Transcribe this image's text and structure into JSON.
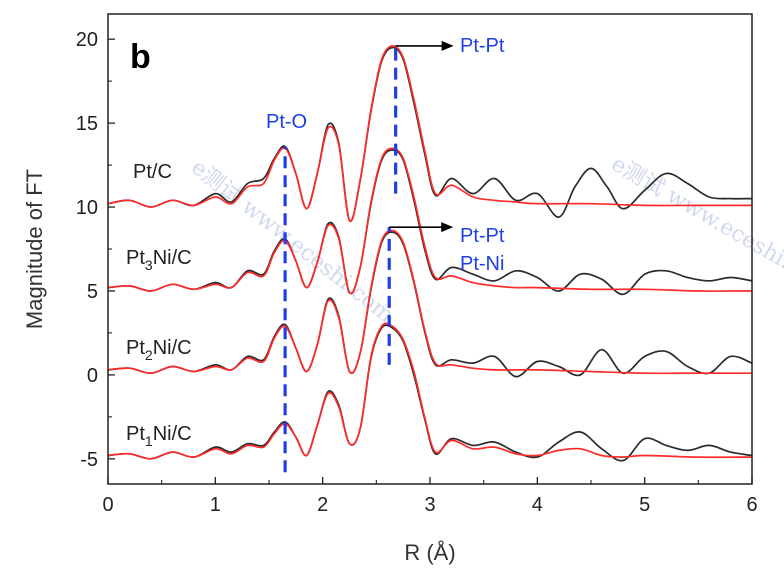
{
  "chart_data": {
    "type": "line",
    "panel_label": "b",
    "xlabel": "R (Å)",
    "ylabel": "Magnitude of FT",
    "xlim": [
      0,
      6
    ],
    "ylim": [
      -6.5,
      21.5
    ],
    "x_ticks": [
      0,
      1,
      2,
      3,
      4,
      5,
      6
    ],
    "x_tick_labels": [
      "0",
      "1",
      "2",
      "3",
      "4",
      "5",
      "6"
    ],
    "y_ticks": [
      -5,
      0,
      5,
      10,
      15,
      20
    ],
    "y_tick_labels": [
      "-5",
      "0",
      "5",
      "10",
      "15",
      "20"
    ],
    "grid": false,
    "series_colors": {
      "experiment": "#2b2b2b",
      "fit": "#ff2b2b"
    },
    "samples": [
      {
        "label_main": "Pt/C",
        "label_sub": "",
        "offset": 10.2,
        "experiment": [
          [
            0,
            0
          ],
          [
            0.2,
            0.2
          ],
          [
            0.4,
            -0.2
          ],
          [
            0.6,
            0.2
          ],
          [
            0.8,
            -0.1
          ],
          [
            1.0,
            0.6
          ],
          [
            1.15,
            0.1
          ],
          [
            1.3,
            1.2
          ],
          [
            1.45,
            1.5
          ],
          [
            1.55,
            2.7
          ],
          [
            1.65,
            3.4
          ],
          [
            1.75,
            1.8
          ],
          [
            1.85,
            -0.3
          ],
          [
            1.95,
            1.8
          ],
          [
            2.05,
            4.7
          ],
          [
            2.15,
            3.6
          ],
          [
            2.25,
            -1.0
          ],
          [
            2.35,
            1.4
          ],
          [
            2.45,
            5.5
          ],
          [
            2.55,
            8.5
          ],
          [
            2.65,
            9.3
          ],
          [
            2.75,
            8.6
          ],
          [
            2.85,
            6.0
          ],
          [
            2.95,
            3.0
          ],
          [
            3.05,
            0.5
          ],
          [
            3.2,
            1.5
          ],
          [
            3.4,
            0.6
          ],
          [
            3.6,
            1.5
          ],
          [
            3.8,
            0.2
          ],
          [
            4.0,
            0.6
          ],
          [
            4.2,
            -0.8
          ],
          [
            4.35,
            1.0
          ],
          [
            4.5,
            2.1
          ],
          [
            4.65,
            1.0
          ],
          [
            4.8,
            -0.3
          ],
          [
            5.0,
            0.8
          ],
          [
            5.2,
            1.8
          ],
          [
            5.4,
            1.2
          ],
          [
            5.6,
            0.4
          ],
          [
            5.8,
            0.3
          ],
          [
            6.0,
            0.3
          ]
        ],
        "fit": [
          [
            0,
            0
          ],
          [
            0.2,
            0.2
          ],
          [
            0.4,
            -0.2
          ],
          [
            0.6,
            0.2
          ],
          [
            0.8,
            -0.1
          ],
          [
            1.0,
            0.4
          ],
          [
            1.15,
            0.0
          ],
          [
            1.3,
            1.0
          ],
          [
            1.45,
            1.2
          ],
          [
            1.55,
            2.6
          ],
          [
            1.65,
            3.3
          ],
          [
            1.75,
            1.8
          ],
          [
            1.85,
            -0.3
          ],
          [
            1.95,
            1.8
          ],
          [
            2.05,
            4.5
          ],
          [
            2.15,
            3.5
          ],
          [
            2.25,
            -1.0
          ],
          [
            2.35,
            1.4
          ],
          [
            2.45,
            5.6
          ],
          [
            2.55,
            8.6
          ],
          [
            2.65,
            9.4
          ],
          [
            2.75,
            8.7
          ],
          [
            2.85,
            6.2
          ],
          [
            2.95,
            3.2
          ],
          [
            3.05,
            0.6
          ],
          [
            3.2,
            1.1
          ],
          [
            3.4,
            0.4
          ],
          [
            3.6,
            0.2
          ],
          [
            3.8,
            0.1
          ],
          [
            4.0,
            0.0
          ],
          [
            4.5,
            0.0
          ],
          [
            5.0,
            -0.1
          ],
          [
            5.5,
            -0.1
          ],
          [
            6.0,
            -0.1
          ]
        ]
      },
      {
        "label_main": "Pt",
        "label_sub": "3",
        "label_rest": "Ni/C",
        "offset": 5.2,
        "experiment": [
          [
            0,
            0
          ],
          [
            0.2,
            0.1
          ],
          [
            0.4,
            -0.2
          ],
          [
            0.6,
            0.2
          ],
          [
            0.8,
            -0.1
          ],
          [
            1.0,
            0.3
          ],
          [
            1.15,
            0.0
          ],
          [
            1.3,
            1.0
          ],
          [
            1.45,
            0.8
          ],
          [
            1.55,
            2.2
          ],
          [
            1.65,
            2.9
          ],
          [
            1.75,
            1.6
          ],
          [
            1.85,
            0.0
          ],
          [
            1.95,
            1.5
          ],
          [
            2.05,
            3.8
          ],
          [
            2.15,
            3.0
          ],
          [
            2.25,
            -0.3
          ],
          [
            2.35,
            1.2
          ],
          [
            2.45,
            5.0
          ],
          [
            2.55,
            7.6
          ],
          [
            2.65,
            8.2
          ],
          [
            2.75,
            7.6
          ],
          [
            2.85,
            5.2
          ],
          [
            2.95,
            2.3
          ],
          [
            3.05,
            0.5
          ],
          [
            3.2,
            1.2
          ],
          [
            3.4,
            0.8
          ],
          [
            3.6,
            0.4
          ],
          [
            3.8,
            1.0
          ],
          [
            4.0,
            0.6
          ],
          [
            4.2,
            -0.2
          ],
          [
            4.4,
            0.8
          ],
          [
            4.6,
            0.5
          ],
          [
            4.8,
            -0.4
          ],
          [
            5.0,
            0.8
          ],
          [
            5.2,
            1.0
          ],
          [
            5.4,
            0.6
          ],
          [
            5.6,
            0.4
          ],
          [
            5.8,
            0.6
          ],
          [
            6.0,
            0.4
          ]
        ],
        "fit": [
          [
            0,
            0
          ],
          [
            0.2,
            0.1
          ],
          [
            0.4,
            -0.2
          ],
          [
            0.6,
            0.2
          ],
          [
            0.8,
            -0.1
          ],
          [
            1.0,
            0.2
          ],
          [
            1.15,
            0.0
          ],
          [
            1.3,
            0.9
          ],
          [
            1.45,
            0.7
          ],
          [
            1.55,
            2.1
          ],
          [
            1.65,
            2.8
          ],
          [
            1.75,
            1.6
          ],
          [
            1.85,
            0.0
          ],
          [
            1.95,
            1.5
          ],
          [
            2.05,
            3.7
          ],
          [
            2.15,
            2.9
          ],
          [
            2.25,
            -0.3
          ],
          [
            2.35,
            1.2
          ],
          [
            2.45,
            5.1
          ],
          [
            2.55,
            7.7
          ],
          [
            2.65,
            8.3
          ],
          [
            2.75,
            7.7
          ],
          [
            2.85,
            5.4
          ],
          [
            2.95,
            2.5
          ],
          [
            3.05,
            0.6
          ],
          [
            3.2,
            0.7
          ],
          [
            3.4,
            0.3
          ],
          [
            3.6,
            0.1
          ],
          [
            3.8,
            0.0
          ],
          [
            4.0,
            0.0
          ],
          [
            4.5,
            -0.1
          ],
          [
            5.0,
            -0.1
          ],
          [
            5.5,
            -0.2
          ],
          [
            6.0,
            -0.2
          ]
        ]
      },
      {
        "label_main": "Pt",
        "label_sub": "2",
        "label_rest": "Ni/C",
        "offset": 0.3,
        "experiment": [
          [
            0,
            0
          ],
          [
            0.2,
            0.1
          ],
          [
            0.4,
            -0.2
          ],
          [
            0.6,
            0.2
          ],
          [
            0.8,
            -0.1
          ],
          [
            1.0,
            0.3
          ],
          [
            1.15,
            0.0
          ],
          [
            1.3,
            0.8
          ],
          [
            1.45,
            0.6
          ],
          [
            1.55,
            2.0
          ],
          [
            1.65,
            2.7
          ],
          [
            1.75,
            1.3
          ],
          [
            1.85,
            -0.1
          ],
          [
            1.95,
            1.5
          ],
          [
            2.05,
            4.2
          ],
          [
            2.15,
            3.2
          ],
          [
            2.25,
            -0.1
          ],
          [
            2.35,
            1.0
          ],
          [
            2.45,
            4.8
          ],
          [
            2.55,
            7.6
          ],
          [
            2.65,
            8.2
          ],
          [
            2.75,
            7.5
          ],
          [
            2.85,
            5.2
          ],
          [
            2.95,
            2.3
          ],
          [
            3.05,
            0.3
          ],
          [
            3.2,
            0.6
          ],
          [
            3.4,
            0.4
          ],
          [
            3.6,
            0.8
          ],
          [
            3.8,
            -0.4
          ],
          [
            4.0,
            0.5
          ],
          [
            4.2,
            0.2
          ],
          [
            4.4,
            -0.3
          ],
          [
            4.6,
            1.2
          ],
          [
            4.8,
            -0.2
          ],
          [
            5.0,
            0.8
          ],
          [
            5.2,
            1.1
          ],
          [
            5.4,
            0.2
          ],
          [
            5.6,
            -0.2
          ],
          [
            5.8,
            0.8
          ],
          [
            6.0,
            0.4
          ]
        ],
        "fit": [
          [
            0,
            0
          ],
          [
            0.2,
            0.1
          ],
          [
            0.4,
            -0.2
          ],
          [
            0.6,
            0.2
          ],
          [
            0.8,
            -0.1
          ],
          [
            1.0,
            0.2
          ],
          [
            1.15,
            0.0
          ],
          [
            1.3,
            0.7
          ],
          [
            1.45,
            0.5
          ],
          [
            1.55,
            1.9
          ],
          [
            1.65,
            2.6
          ],
          [
            1.75,
            1.3
          ],
          [
            1.85,
            -0.1
          ],
          [
            1.95,
            1.5
          ],
          [
            2.05,
            4.1
          ],
          [
            2.15,
            3.1
          ],
          [
            2.25,
            -0.1
          ],
          [
            2.35,
            1.0
          ],
          [
            2.45,
            4.9
          ],
          [
            2.55,
            7.7
          ],
          [
            2.65,
            8.3
          ],
          [
            2.75,
            7.6
          ],
          [
            2.85,
            5.3
          ],
          [
            2.95,
            2.4
          ],
          [
            3.05,
            0.4
          ],
          [
            3.2,
            0.3
          ],
          [
            3.4,
            0.1
          ],
          [
            3.6,
            0.0
          ],
          [
            3.8,
            0.0
          ],
          [
            4.0,
            0.0
          ],
          [
            4.5,
            -0.1
          ],
          [
            5.0,
            -0.2
          ],
          [
            5.5,
            -0.2
          ],
          [
            6.0,
            -0.2
          ]
        ]
      },
      {
        "label_main": "Pt",
        "label_sub": "1",
        "label_rest": "Ni/C",
        "offset": -4.8,
        "experiment": [
          [
            0,
            0
          ],
          [
            0.2,
            0.1
          ],
          [
            0.4,
            -0.2
          ],
          [
            0.6,
            0.2
          ],
          [
            0.8,
            -0.1
          ],
          [
            1.0,
            0.5
          ],
          [
            1.15,
            0.2
          ],
          [
            1.3,
            0.7
          ],
          [
            1.45,
            0.6
          ],
          [
            1.55,
            1.4
          ],
          [
            1.65,
            2.0
          ],
          [
            1.75,
            1.1
          ],
          [
            1.85,
            0.0
          ],
          [
            1.95,
            1.8
          ],
          [
            2.05,
            3.8
          ],
          [
            2.15,
            3.0
          ],
          [
            2.25,
            0.7
          ],
          [
            2.35,
            1.6
          ],
          [
            2.45,
            5.8
          ],
          [
            2.55,
            7.6
          ],
          [
            2.65,
            7.6
          ],
          [
            2.75,
            6.8
          ],
          [
            2.85,
            4.8
          ],
          [
            2.95,
            2.2
          ],
          [
            3.05,
            0.1
          ],
          [
            3.2,
            1.0
          ],
          [
            3.4,
            0.6
          ],
          [
            3.6,
            0.8
          ],
          [
            3.8,
            0.2
          ],
          [
            4.0,
            -0.1
          ],
          [
            4.2,
            0.8
          ],
          [
            4.4,
            1.4
          ],
          [
            4.6,
            0.4
          ],
          [
            4.8,
            -0.3
          ],
          [
            5.0,
            1.0
          ],
          [
            5.2,
            0.6
          ],
          [
            5.4,
            0.3
          ],
          [
            5.6,
            0.6
          ],
          [
            5.8,
            0.2
          ],
          [
            6.0,
            0.0
          ]
        ],
        "fit": [
          [
            0,
            0
          ],
          [
            0.2,
            0.1
          ],
          [
            0.4,
            -0.2
          ],
          [
            0.6,
            0.2
          ],
          [
            0.8,
            -0.1
          ],
          [
            1.0,
            0.4
          ],
          [
            1.15,
            0.1
          ],
          [
            1.3,
            0.6
          ],
          [
            1.45,
            0.5
          ],
          [
            1.55,
            1.3
          ],
          [
            1.65,
            1.9
          ],
          [
            1.75,
            1.1
          ],
          [
            1.85,
            0.0
          ],
          [
            1.95,
            1.8
          ],
          [
            2.05,
            3.7
          ],
          [
            2.15,
            2.9
          ],
          [
            2.25,
            0.7
          ],
          [
            2.35,
            1.6
          ],
          [
            2.45,
            5.9
          ],
          [
            2.55,
            7.7
          ],
          [
            2.65,
            7.7
          ],
          [
            2.75,
            6.9
          ],
          [
            2.85,
            5.0
          ],
          [
            2.95,
            2.3
          ],
          [
            3.05,
            0.2
          ],
          [
            3.2,
            0.9
          ],
          [
            3.4,
            0.4
          ],
          [
            3.6,
            0.5
          ],
          [
            3.8,
            0.1
          ],
          [
            4.0,
            0.0
          ],
          [
            4.2,
            0.3
          ],
          [
            4.4,
            0.4
          ],
          [
            4.6,
            0.0
          ],
          [
            4.8,
            -0.1
          ],
          [
            5.0,
            0.0
          ],
          [
            5.5,
            -0.1
          ],
          [
            6.0,
            -0.1
          ]
        ]
      }
    ],
    "dashed_lines": [
      {
        "name": "pt-o-dashed-line",
        "x1": 1.65,
        "y1": -5.8,
        "x2": 1.65,
        "y2": 13.6
      },
      {
        "name": "pt-pt-dashed-line-top",
        "x1": 2.68,
        "y1": 10.8,
        "x2": 2.68,
        "y2": 19.6
      },
      {
        "name": "pt-ptni-dashed-line",
        "x1": 2.62,
        "y1": 0.6,
        "x2": 2.62,
        "y2": 8.8
      }
    ],
    "annotations": [
      {
        "name": "pt-o-label",
        "text": "Pt-O"
      },
      {
        "name": "pt-pt-top-label",
        "text": "Pt-Pt"
      },
      {
        "name": "pt-pt-mid-label",
        "text": "Pt-Pt"
      },
      {
        "name": "pt-ni-label",
        "text": "Pt-Ni"
      }
    ],
    "watermarks": [
      "e测试 www.eceshi.com",
      "e测试 www.eceshi.com"
    ]
  }
}
